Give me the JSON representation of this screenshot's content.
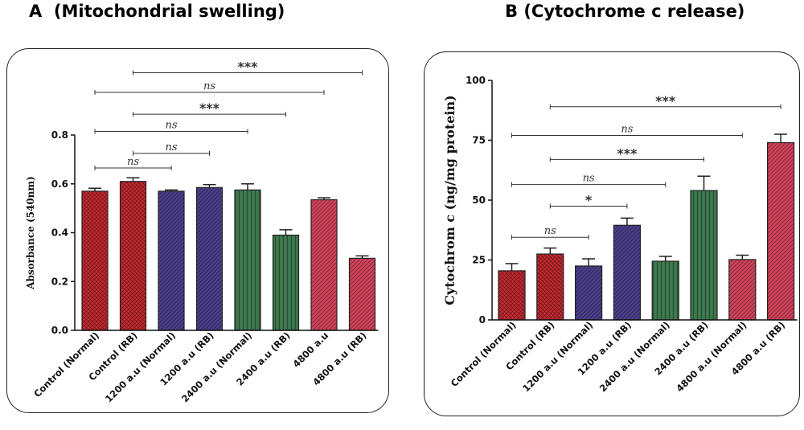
{
  "panel_a": {
    "title": "A  (Mitochondrial swelling)"
  },
  "panel_b": {
    "title": "B (Cytochrome c release)"
  },
  "colors": {
    "red": "#c8282e",
    "purple": "#4b3f8c",
    "green": "#3e7a4e",
    "pink": "#d4435a"
  },
  "chart_data": [
    {
      "type": "bar",
      "title": "A  (Mitochondrial swelling)",
      "xlabel": "",
      "ylabel": "Absorbance (540nm)",
      "ylim": [
        0,
        0.8
      ],
      "yticks": [
        0.0,
        0.2,
        0.4,
        0.6,
        0.8
      ],
      "ytick_labels": [
        "0.0",
        "0.2",
        "0.4",
        "0.6",
        "0.8"
      ],
      "grid": false,
      "categories": [
        "Control (Normal)",
        "Control (RB)",
        "1200 a.u (Normal)",
        "1200 a.u (RB)",
        "2400 a.u (Normal)",
        "2400 a.u (RB)",
        "4800 a.u",
        "4800 a.u (RB)"
      ],
      "values": [
        0.57,
        0.61,
        0.57,
        0.585,
        0.575,
        0.39,
        0.535,
        0.295
      ],
      "errors": [
        0.012,
        0.015,
        0.005,
        0.012,
        0.025,
        0.022,
        0.008,
        0.01
      ],
      "bar_colors": [
        "red",
        "red",
        "purple",
        "purple",
        "green",
        "green",
        "pink",
        "pink"
      ],
      "bar_patterns": [
        "cross",
        "cross",
        "diag",
        "diag",
        "vert",
        "vert",
        "diag",
        "diag"
      ],
      "significance": [
        {
          "from": 0,
          "to": 2,
          "label": "ns",
          "y": 0.665
        },
        {
          "from": 1,
          "to": 3,
          "label": "ns",
          "y": 0.725
        },
        {
          "from": 0,
          "to": 4,
          "label": "ns",
          "y": 0.815
        },
        {
          "from": 1,
          "to": 5,
          "label": "***",
          "y": 0.885
        },
        {
          "from": 0,
          "to": 6,
          "label": "ns",
          "y": 0.975
        },
        {
          "from": 1,
          "to": 7,
          "label": "***",
          "y": 1.055
        }
      ]
    },
    {
      "type": "bar",
      "title": "B (Cytochrome c release)",
      "xlabel": "",
      "ylabel": "Cytochrom c (ng/mg protein)",
      "ylim": [
        0,
        100
      ],
      "yticks": [
        0,
        25,
        50,
        75,
        100
      ],
      "ytick_labels": [
        "0",
        "25",
        "50",
        "75",
        "100"
      ],
      "grid": false,
      "categories": [
        "Control (Normal)",
        "Control (RB)",
        "1200 a.u (Normal)",
        "1200 a.u (RB)",
        "2400 a.u (Normal)",
        "2400 a.u (RB)",
        "4800 a.u (Normal)",
        "4800 a.u (RB)"
      ],
      "values": [
        20.5,
        27.5,
        22.5,
        39.5,
        24.5,
        54,
        25.2,
        74
      ],
      "errors": [
        3,
        2.5,
        3,
        3,
        2,
        6,
        1.8,
        3.5
      ],
      "bar_colors": [
        "red",
        "red",
        "purple",
        "purple",
        "green",
        "green",
        "pink",
        "pink"
      ],
      "bar_patterns": [
        "cross",
        "cross",
        "diag",
        "diag",
        "vert",
        "vert",
        "diag",
        "diag"
      ],
      "significance": [
        {
          "from": 0,
          "to": 2,
          "label": "ns",
          "y": 34.5
        },
        {
          "from": 1,
          "to": 3,
          "label": "*",
          "y": 47.5
        },
        {
          "from": 0,
          "to": 4,
          "label": "ns",
          "y": 56.5
        },
        {
          "from": 1,
          "to": 5,
          "label": "***",
          "y": 67
        },
        {
          "from": 0,
          "to": 6,
          "label": "ns",
          "y": 77
        },
        {
          "from": 1,
          "to": 7,
          "label": "***",
          "y": 89
        }
      ]
    }
  ]
}
